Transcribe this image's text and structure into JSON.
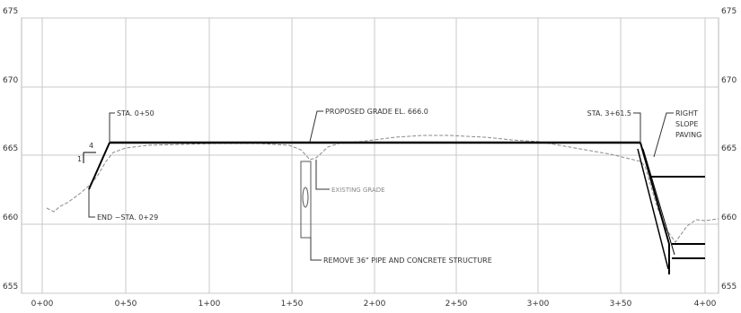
{
  "elevation_ticks": [
    "675",
    "670",
    "665",
    "660",
    "655"
  ],
  "station_ticks": [
    "0+00",
    "0+50",
    "1+00",
    "1+50",
    "2+00",
    "2+50",
    "3+00",
    "3+50",
    "4+00"
  ],
  "annotations": {
    "sta_left": "STA. 0+50",
    "proposed_grade": "PROPOSED GRADE EL. 666.0",
    "sta_right": "STA. 3+61.5",
    "right_slope_line1": "RIGHT",
    "right_slope_line2": "SLOPE",
    "right_slope_line3": "PAVING",
    "existing_grade": "EXISTING GRADE",
    "end_sta": "END ~STA. 0+29",
    "remove_pipe": "REMOVE 36\" PIPE AND CONCRETE STRUCTURE",
    "slope_horizontal": "4",
    "slope_vertical": "1"
  },
  "colors": {
    "grid": "#c8c8c8",
    "proposed": "#000000",
    "existing": "#8a8a8a",
    "text": "#333333"
  }
}
